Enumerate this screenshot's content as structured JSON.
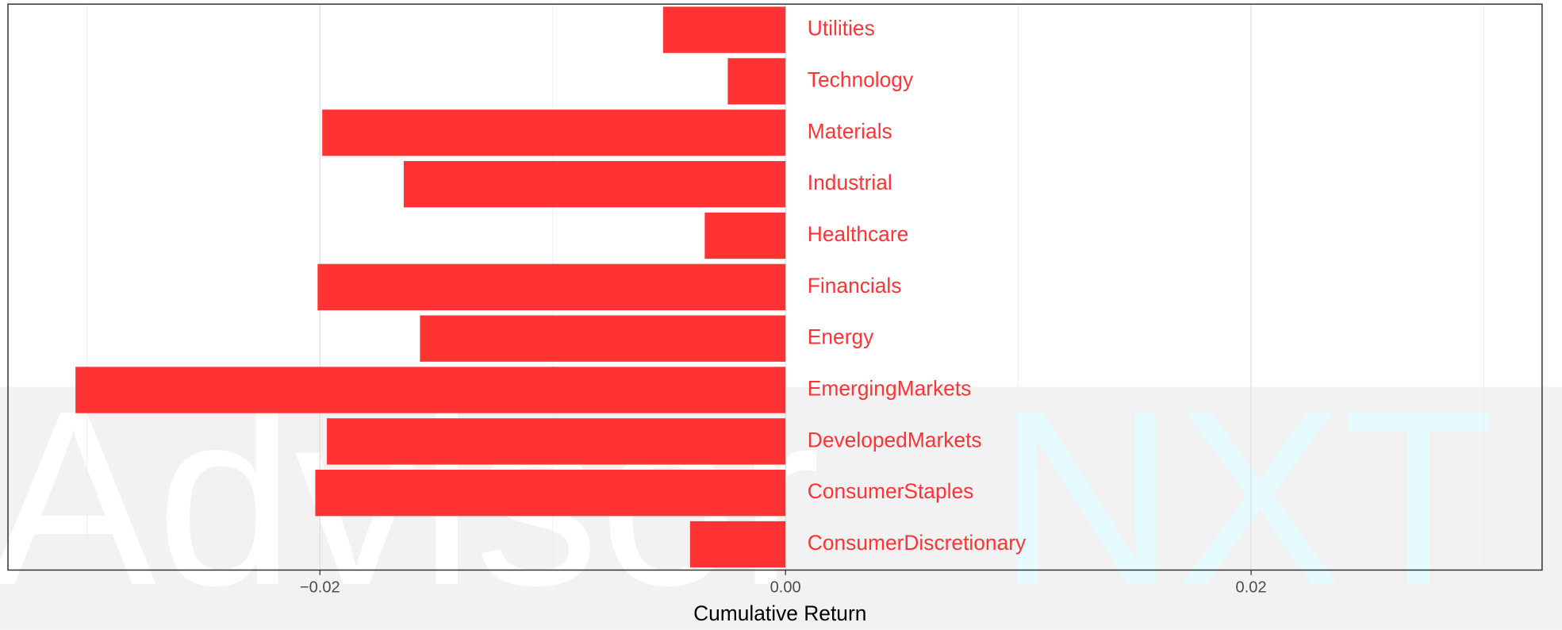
{
  "chart_data": {
    "type": "barh",
    "watermark": [
      "Advisor",
      "NXT"
    ],
    "xlabel": "Cumulative Return",
    "categories": [
      "Utilities",
      "Technology",
      "Materials",
      "Industrial",
      "Healthcare",
      "Financials",
      "Energy",
      "EmergingMarkets",
      "DevelopedMarkets",
      "ConsumerStaples",
      "ConsumerDiscretionary"
    ],
    "values": [
      -0.00526,
      -0.00248,
      -0.0199,
      -0.0164,
      -0.00347,
      -0.0201,
      -0.0157,
      -0.0305,
      -0.0197,
      -0.0202,
      -0.0041
    ],
    "color": "#ff3333",
    "xlim": [
      -0.0334,
      0.0325
    ],
    "xticks": [
      {
        "value": -0.02,
        "label": "−0.02"
      },
      {
        "value": 0,
        "label": "0.00"
      },
      {
        "value": 0.02,
        "label": "0.02"
      }
    ],
    "xminor": [
      -0.03,
      -0.01,
      0.01,
      0.03
    ],
    "grid": true
  }
}
